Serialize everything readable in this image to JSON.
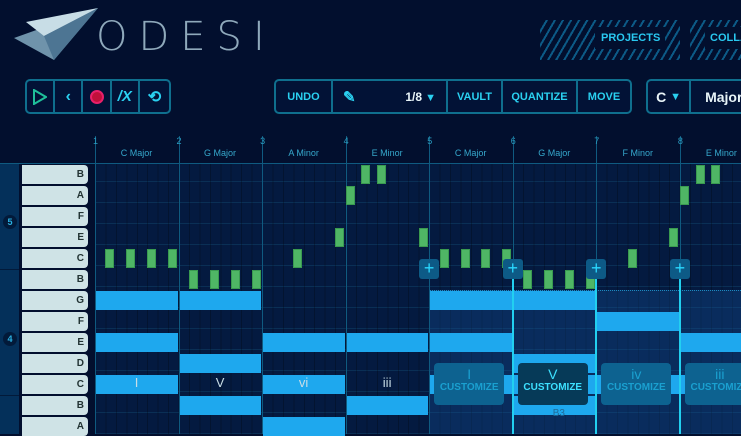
{
  "app": {
    "logo_text": "ODESI"
  },
  "nav": {
    "items": [
      "PROJECTS",
      "COLLA"
    ]
  },
  "transport": {
    "buttons": [
      {
        "name": "play-icon"
      },
      {
        "name": "back-icon"
      },
      {
        "name": "record-icon"
      },
      {
        "name": "metronome-icon"
      },
      {
        "name": "loop-icon"
      }
    ]
  },
  "edit": {
    "undo": "UNDO",
    "grid": "1/8",
    "vault": "VAULT",
    "quantize": "QUANTIZE",
    "move": "MOVE"
  },
  "key": {
    "root": "C",
    "mode": "Major"
  },
  "bars": [
    {
      "num": "1",
      "chord": "C Major",
      "numeral": "I"
    },
    {
      "num": "2",
      "chord": "G Major",
      "numeral": "V"
    },
    {
      "num": "3",
      "chord": "A Minor",
      "numeral": "vi"
    },
    {
      "num": "4",
      "chord": "E Minor",
      "numeral": "iii"
    },
    {
      "num": "5",
      "chord": "C Major",
      "numeral": "I"
    },
    {
      "num": "6",
      "chord": "G Major",
      "numeral": "V"
    },
    {
      "num": "7",
      "chord": "F Minor",
      "numeral": "iv"
    },
    {
      "num": "8",
      "chord": "E Minor",
      "numeral": "iii"
    }
  ],
  "rows": [
    {
      "note": "B"
    },
    {
      "note": "A"
    },
    {
      "note": "F"
    },
    {
      "note": "E"
    },
    {
      "note": "C"
    },
    {
      "note": "B"
    },
    {
      "note": "G"
    },
    {
      "note": "F"
    },
    {
      "note": "E"
    },
    {
      "note": "D"
    },
    {
      "note": "C"
    },
    {
      "note": "B"
    },
    {
      "note": "A"
    }
  ],
  "row_pitches": [
    "B5",
    "A5",
    "F5",
    "E5",
    "C5",
    "B4",
    "G4",
    "F4",
    "E4",
    "D4",
    "C4",
    "B3",
    "A3"
  ],
  "octaves": [
    "5",
    "4"
  ],
  "melody": [
    [
      "C5",
      1,
      2
    ],
    [
      "C5",
      1,
      6
    ],
    [
      "C5",
      1,
      10
    ],
    [
      "C5",
      1,
      14
    ],
    [
      "B4",
      2,
      2
    ],
    [
      "B4",
      2,
      6
    ],
    [
      "B4",
      2,
      10
    ],
    [
      "B4",
      2,
      14
    ],
    [
      "C5",
      3,
      6
    ],
    [
      "E5",
      3,
      14
    ],
    [
      "A5",
      4,
      0
    ],
    [
      "B5",
      4,
      3
    ],
    [
      "B5",
      4,
      6
    ],
    [
      "E5",
      4,
      14
    ],
    [
      "C5",
      5,
      2
    ],
    [
      "C5",
      5,
      6
    ],
    [
      "C5",
      5,
      10
    ],
    [
      "C5",
      5,
      14
    ],
    [
      "B4",
      6,
      2
    ],
    [
      "B4",
      6,
      6
    ],
    [
      "B4",
      6,
      10
    ],
    [
      "B4",
      6,
      14
    ],
    [
      "C5",
      7,
      6
    ],
    [
      "E5",
      7,
      14
    ],
    [
      "A5",
      8,
      0
    ],
    [
      "B5",
      8,
      3
    ],
    [
      "B5",
      8,
      6
    ]
  ],
  "chords": [
    {
      "bar": 1,
      "notes": [
        "C4",
        "E4",
        "G4"
      ]
    },
    {
      "bar": 2,
      "notes": [
        "B3",
        "D4",
        "G4"
      ]
    },
    {
      "bar": 3,
      "notes": [
        "A3",
        "C4",
        "E4"
      ]
    },
    {
      "bar": 4,
      "notes": [
        "B3",
        "E4"
      ]
    },
    {
      "bar": 5,
      "notes": [
        "C4",
        "E4",
        "G4"
      ]
    },
    {
      "bar": 6,
      "notes": [
        "B3",
        "C4",
        "D4",
        "G4"
      ]
    },
    {
      "bar": 7,
      "notes": [
        "C4",
        "F4"
      ]
    },
    {
      "bar": 8,
      "notes": [
        "C4",
        "E4"
      ]
    }
  ],
  "customize": {
    "label": "CUSTOMIZE",
    "active_bar": 6,
    "hover_note": "B3"
  },
  "colors": {
    "melody": "#4fb665",
    "chord": "#1ea8ee",
    "accent": "#2ad0f0",
    "record": "#c0103a"
  }
}
